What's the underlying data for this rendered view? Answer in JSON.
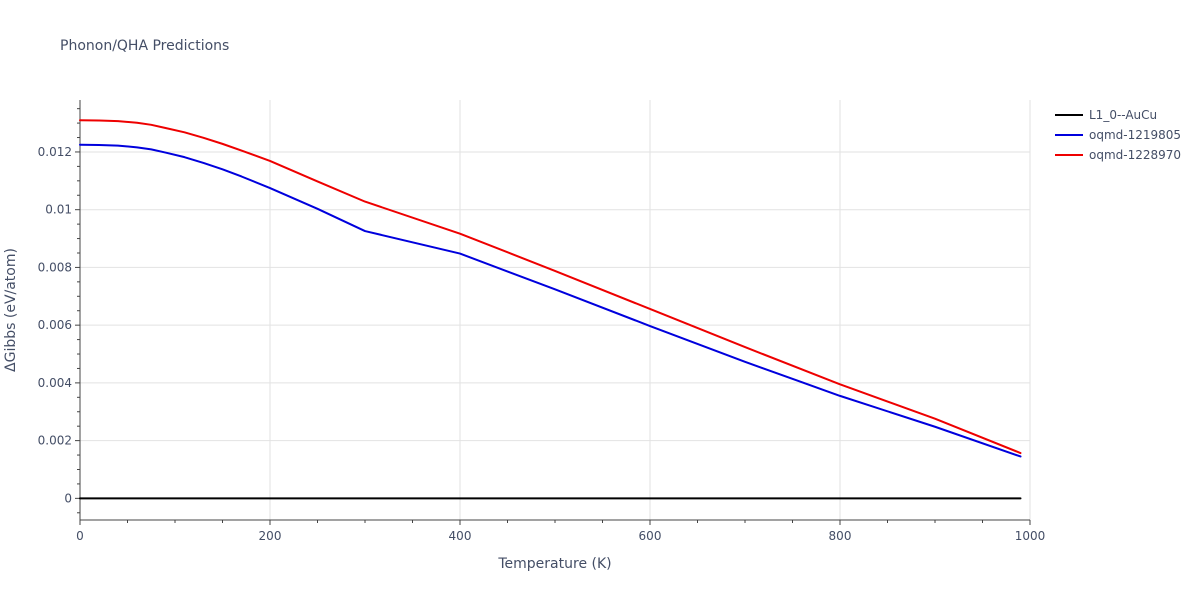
{
  "chart_data": {
    "type": "line",
    "title": "Phonon/QHA Predictions",
    "xlabel": "Temperature (K)",
    "ylabel": "ΔGibbs (eV/atom)",
    "xlim": [
      0,
      1000
    ],
    "ylim": [
      -0.00075,
      0.0138
    ],
    "x_ticks": [
      0,
      200,
      400,
      600,
      800,
      1000
    ],
    "x_tick_labels": [
      "0",
      "200",
      "400",
      "600",
      "800",
      "1000"
    ],
    "y_ticks": [
      0,
      0.002,
      0.004,
      0.006,
      0.008,
      0.01,
      0.012
    ],
    "y_tick_labels": [
      "0",
      "0.002",
      "0.004",
      "0.006",
      "0.008",
      "0.01",
      "0.012"
    ],
    "grid": true,
    "legend_position": "top-right",
    "series": [
      {
        "name": "L1_0--AuCu",
        "color": "#000000",
        "x": [
          0,
          100,
          200,
          300,
          400,
          500,
          600,
          700,
          800,
          900,
          990
        ],
        "y": [
          0,
          0,
          0,
          0,
          0,
          0,
          0,
          0,
          0,
          0,
          0
        ]
      },
      {
        "name": "oqmd-1219805",
        "color": "#0000dd",
        "x": [
          0,
          20,
          40,
          60,
          75,
          90,
          110,
          130,
          150,
          170,
          200,
          250,
          300,
          400,
          500,
          600,
          700,
          800,
          900,
          990
        ],
        "y": [
          0.01225,
          0.01224,
          0.01222,
          0.01216,
          0.01209,
          0.01198,
          0.01182,
          0.01162,
          0.0114,
          0.01115,
          0.01075,
          0.01003,
          0.00926,
          0.00848,
          0.00724,
          0.00597,
          0.00473,
          0.00355,
          0.00248,
          0.00145
        ]
      },
      {
        "name": "oqmd-1228970",
        "color": "#ee0000",
        "x": [
          0,
          20,
          40,
          60,
          75,
          90,
          110,
          130,
          150,
          170,
          200,
          250,
          300,
          400,
          500,
          600,
          700,
          800,
          900,
          990
        ],
        "y": [
          0.0131,
          0.01309,
          0.01307,
          0.01301,
          0.01294,
          0.01283,
          0.01268,
          0.01249,
          0.01228,
          0.01205,
          0.01169,
          0.01098,
          0.01028,
          0.00917,
          0.00788,
          0.00656,
          0.00524,
          0.00395,
          0.00276,
          0.00157
        ]
      }
    ]
  }
}
